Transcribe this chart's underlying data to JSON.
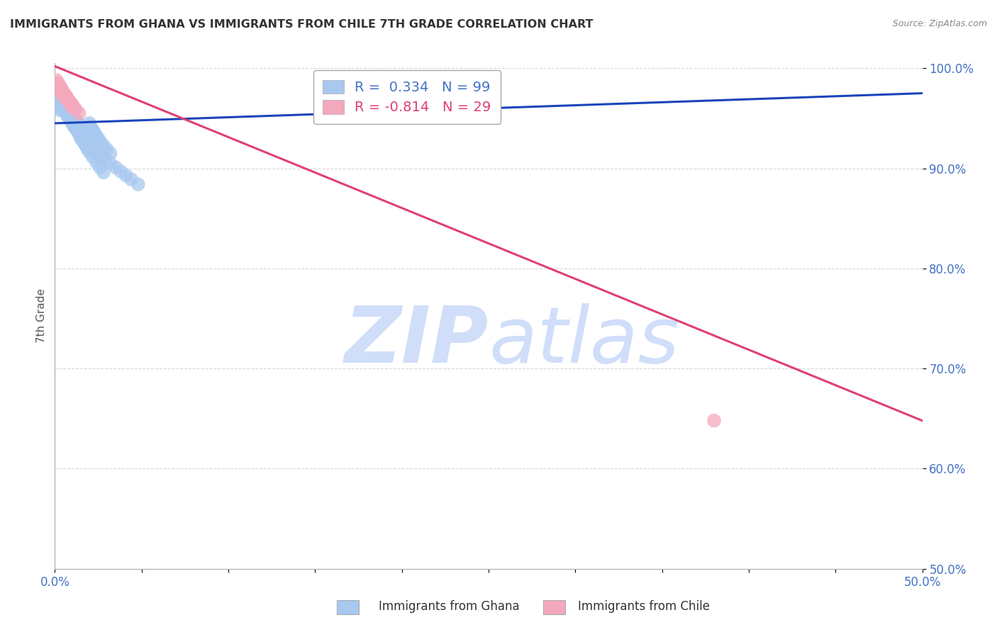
{
  "title": "IMMIGRANTS FROM GHANA VS IMMIGRANTS FROM CHILE 7TH GRADE CORRELATION CHART",
  "source": "Source: ZipAtlas.com",
  "ylabel": "7th Grade",
  "xlim": [
    0.0,
    0.5
  ],
  "ylim": [
    0.5,
    1.005
  ],
  "xticks": [
    0.0,
    0.05,
    0.1,
    0.15,
    0.2,
    0.25,
    0.3,
    0.35,
    0.4,
    0.45,
    0.5
  ],
  "yticks": [
    0.5,
    0.6,
    0.7,
    0.8,
    0.9,
    1.0
  ],
  "xtick_labels_show": {
    "0.0": "0.0%",
    "0.5": "50.0%"
  },
  "ytick_labels": [
    "50.0%",
    "60.0%",
    "70.0%",
    "80.0%",
    "90.0%",
    "100.0%"
  ],
  "ghana_color": "#A8C8F0",
  "chile_color": "#F4A8BC",
  "ghana_line_color": "#1A44BB",
  "chile_line_color": "#E04070",
  "ghana_R": 0.334,
  "ghana_N": 99,
  "chile_R": -0.814,
  "chile_N": 29,
  "watermark_zip": "ZIP",
  "watermark_atlas": "atlas",
  "watermark_color": "#D0DEFA",
  "background_color": "#FFFFFF",
  "ghana_line_x": [
    0.0,
    0.5
  ],
  "ghana_line_y": [
    0.945,
    0.975
  ],
  "chile_line_x": [
    0.0,
    0.5
  ],
  "chile_line_y": [
    1.002,
    0.648
  ],
  "ghana_pts_x": [
    0.0005,
    0.001,
    0.001,
    0.0015,
    0.002,
    0.002,
    0.002,
    0.003,
    0.003,
    0.003,
    0.004,
    0.004,
    0.004,
    0.004,
    0.005,
    0.005,
    0.005,
    0.005,
    0.006,
    0.006,
    0.006,
    0.006,
    0.007,
    0.007,
    0.007,
    0.007,
    0.008,
    0.008,
    0.008,
    0.009,
    0.009,
    0.009,
    0.01,
    0.01,
    0.01,
    0.011,
    0.011,
    0.012,
    0.012,
    0.013,
    0.013,
    0.014,
    0.014,
    0.015,
    0.015,
    0.016,
    0.017,
    0.018,
    0.019,
    0.02,
    0.02,
    0.021,
    0.022,
    0.023,
    0.024,
    0.025,
    0.026,
    0.028,
    0.03,
    0.032,
    0.015,
    0.017,
    0.019,
    0.021,
    0.023,
    0.025,
    0.027,
    0.029,
    0.032,
    0.035,
    0.038,
    0.041,
    0.044,
    0.048,
    0.007,
    0.008,
    0.009,
    0.01,
    0.011,
    0.012,
    0.013,
    0.014,
    0.015,
    0.016,
    0.017,
    0.018,
    0.019,
    0.02,
    0.022,
    0.024,
    0.026,
    0.028,
    0.005,
    0.006,
    0.007,
    0.008,
    0.009,
    0.01,
    0.011
  ],
  "ghana_pts_y": [
    0.98,
    0.978,
    0.975,
    0.972,
    0.97,
    0.967,
    0.964,
    0.963,
    0.96,
    0.958,
    0.978,
    0.975,
    0.972,
    0.969,
    0.968,
    0.965,
    0.962,
    0.959,
    0.966,
    0.963,
    0.96,
    0.957,
    0.962,
    0.959,
    0.956,
    0.953,
    0.958,
    0.955,
    0.952,
    0.954,
    0.951,
    0.948,
    0.952,
    0.949,
    0.946,
    0.95,
    0.947,
    0.948,
    0.945,
    0.946,
    0.943,
    0.944,
    0.941,
    0.942,
    0.939,
    0.94,
    0.937,
    0.935,
    0.933,
    0.945,
    0.942,
    0.94,
    0.938,
    0.935,
    0.932,
    0.93,
    0.927,
    0.923,
    0.919,
    0.915,
    0.93,
    0.927,
    0.924,
    0.921,
    0.918,
    0.915,
    0.912,
    0.909,
    0.905,
    0.901,
    0.897,
    0.893,
    0.889,
    0.884,
    0.955,
    0.952,
    0.949,
    0.946,
    0.943,
    0.94,
    0.937,
    0.934,
    0.931,
    0.928,
    0.925,
    0.922,
    0.919,
    0.916,
    0.911,
    0.906,
    0.901,
    0.896,
    0.96,
    0.957,
    0.954,
    0.951,
    0.948,
    0.945,
    0.942
  ],
  "chile_pts_x": [
    0.001,
    0.002,
    0.002,
    0.003,
    0.003,
    0.004,
    0.004,
    0.005,
    0.005,
    0.006,
    0.006,
    0.007,
    0.008,
    0.009,
    0.01,
    0.011,
    0.012,
    0.014,
    0.001,
    0.002,
    0.003,
    0.004,
    0.005,
    0.006,
    0.007,
    0.008,
    0.009,
    0.01,
    0.38
  ],
  "chile_pts_y": [
    0.985,
    0.982,
    0.979,
    0.98,
    0.977,
    0.978,
    0.975,
    0.975,
    0.972,
    0.973,
    0.97,
    0.971,
    0.968,
    0.966,
    0.964,
    0.961,
    0.959,
    0.955,
    0.988,
    0.985,
    0.982,
    0.979,
    0.976,
    0.973,
    0.97,
    0.967,
    0.964,
    0.961,
    0.648
  ]
}
